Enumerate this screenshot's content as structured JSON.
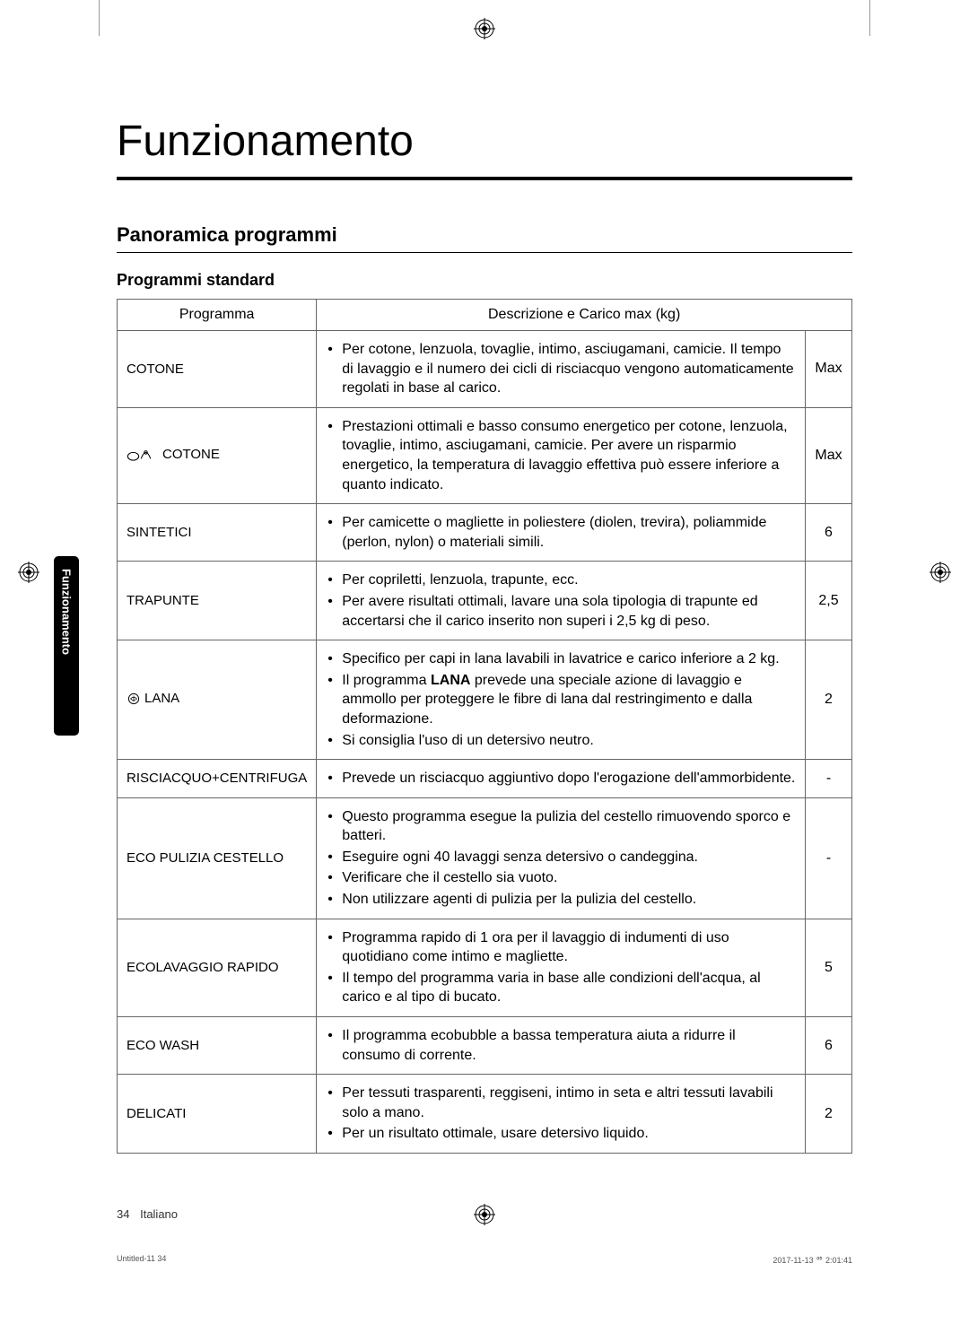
{
  "page": {
    "title": "Funzionamento",
    "section_title": "Panoramica programmi",
    "subsection_title": "Programmi standard",
    "side_tab": "Funzionamento",
    "footer_page": "34",
    "footer_lang": "Italiano",
    "print_left": "Untitled-11   34",
    "print_right": "2017-11-13   ᄋᄒ 2:01:41"
  },
  "table": {
    "header_program": "Programma",
    "header_desc": "Descrizione e Carico max (kg)",
    "rows": [
      {
        "program": "COTONE",
        "has_icon": false,
        "bullets": [
          "Per cotone, lenzuola, tovaglie, intimo, asciugamani, camicie. Il tempo di lavaggio e il numero dei cicli di risciacquo vengono automaticamente regolati in base al carico."
        ],
        "max": "Max"
      },
      {
        "program": "COTONE",
        "has_icon": true,
        "icon_type": "cotton",
        "bullets": [
          "Prestazioni ottimali e basso consumo energetico per cotone, lenzuola, tovaglie, intimo, asciugamani, camicie. Per avere un risparmio energetico, la temperatura di lavaggio effettiva può essere inferiore a quanto indicato."
        ],
        "max": "Max"
      },
      {
        "program": "SINTETICI",
        "has_icon": false,
        "bullets": [
          "Per camicette o magliette in poliestere (diolen, trevira), poliammide (perlon, nylon) o materiali simili."
        ],
        "max": "6"
      },
      {
        "program": "TRAPUNTE",
        "has_icon": false,
        "bullets": [
          "Per copriletti, lenzuola, trapunte, ecc.",
          "Per avere risultati ottimali, lavare una sola tipologia di trapunte ed accertarsi che il carico inserito non superi i 2,5 kg di peso."
        ],
        "max": "2,5"
      },
      {
        "program": "LANA",
        "has_icon": true,
        "icon_type": "wool",
        "bullets": [
          "Specifico per capi in lana lavabili in lavatrice e carico inferiore a 2 kg.",
          "Il programma LANA prevede una speciale azione di lavaggio e ammollo per proteggere le fibre di lana dal restringimento e dalla deformazione.",
          "Si consiglia l'uso di un detersivo neutro."
        ],
        "max": "2"
      },
      {
        "program": "RISCIACQUO+CENTRIFUGA",
        "has_icon": false,
        "bullets": [
          "Prevede un risciacquo aggiuntivo dopo l'erogazione dell'ammorbidente."
        ],
        "max": "-"
      },
      {
        "program": "ECO PULIZIA CESTELLO",
        "has_icon": false,
        "bullets": [
          "Questo programma esegue la pulizia del cestello rimuovendo sporco e batteri.",
          "Eseguire ogni 40 lavaggi senza detersivo o candeggina.",
          "Verificare che il cestello sia vuoto.",
          "Non utilizzare agenti di pulizia per la pulizia del cestello."
        ],
        "max": "-"
      },
      {
        "program": "ECOLAVAGGIO RAPIDO",
        "has_icon": false,
        "bullets": [
          "Programma rapido di 1 ora per il lavaggio di indumenti di uso quotidiano come intimo e magliette.",
          "Il tempo del programma varia in base alle condizioni dell'acqua, al carico e al tipo di bucato."
        ],
        "max": "5"
      },
      {
        "program": "ECO WASH",
        "has_icon": false,
        "bullets": [
          "Il programma ecobubble a bassa temperatura aiuta a ridurre il consumo di corrente."
        ],
        "max": "6"
      },
      {
        "program": "DELICATI",
        "has_icon": false,
        "bullets": [
          "Per tessuti trasparenti, reggiseni, intimo in seta e altri tessuti lavabili solo a mano.",
          "Per un risultato ottimale, usare detersivo liquido."
        ],
        "max": "2"
      }
    ]
  },
  "style": {
    "page_bg": "#ffffff",
    "text_color": "#000000",
    "border_color": "#666666",
    "title_fontsize": 48,
    "section_fontsize": 22,
    "subsection_fontsize": 18,
    "body_fontsize": 16,
    "side_tab_bg": "#000000",
    "side_tab_color": "#ffffff"
  }
}
